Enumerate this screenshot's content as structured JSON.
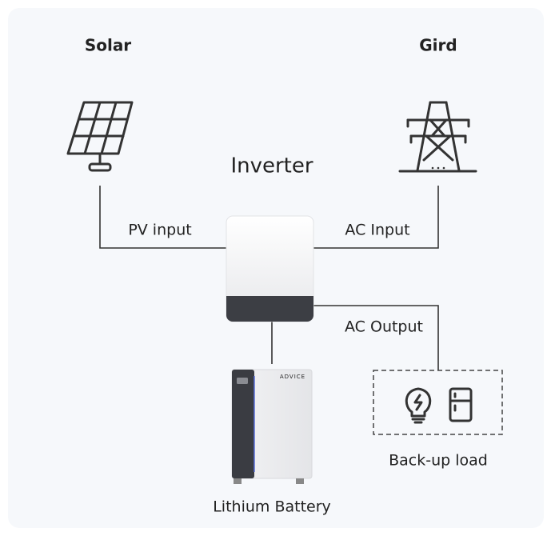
{
  "nodes": {
    "solar": {
      "label": "Solar"
    },
    "grid": {
      "label": "Gird"
    },
    "inverter": {
      "label": "Inverter"
    },
    "battery": {
      "label": "Lithium Battery",
      "brand": "ADVICE"
    },
    "load": {
      "label": "Back-up load"
    }
  },
  "edges": {
    "pv": {
      "label": "PV input"
    },
    "ac_in": {
      "label": "AC Input"
    },
    "ac_out": {
      "label": "AC Output"
    }
  }
}
